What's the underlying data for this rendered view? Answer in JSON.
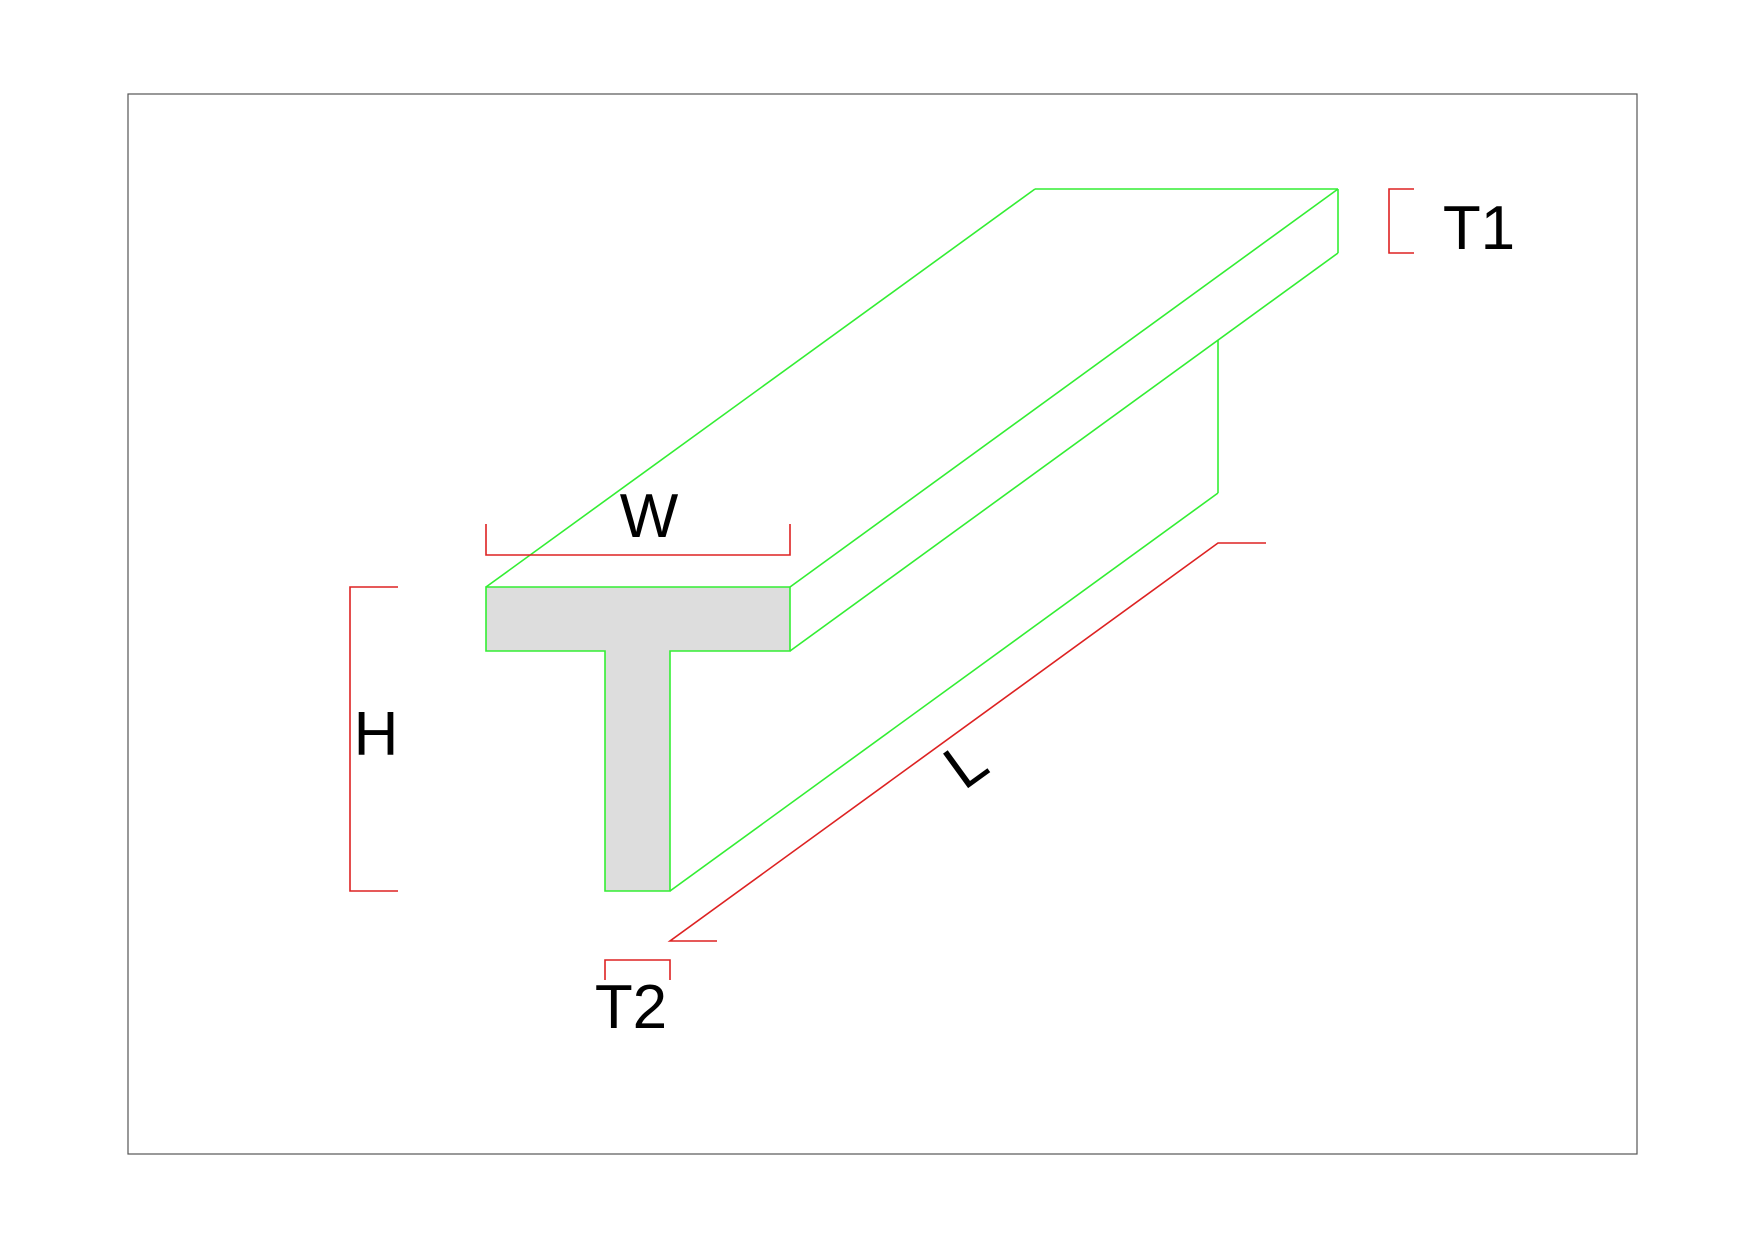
{
  "labels": {
    "width": "W",
    "height": "H",
    "length": "L",
    "flange_thickness": "T1",
    "web_thickness": "T2"
  },
  "colors": {
    "profile_stroke": "#33ee33",
    "section_fill": "#dddddd",
    "dimension_stroke": "#dd2222",
    "frame_stroke": "#555555",
    "text": "#000000"
  }
}
